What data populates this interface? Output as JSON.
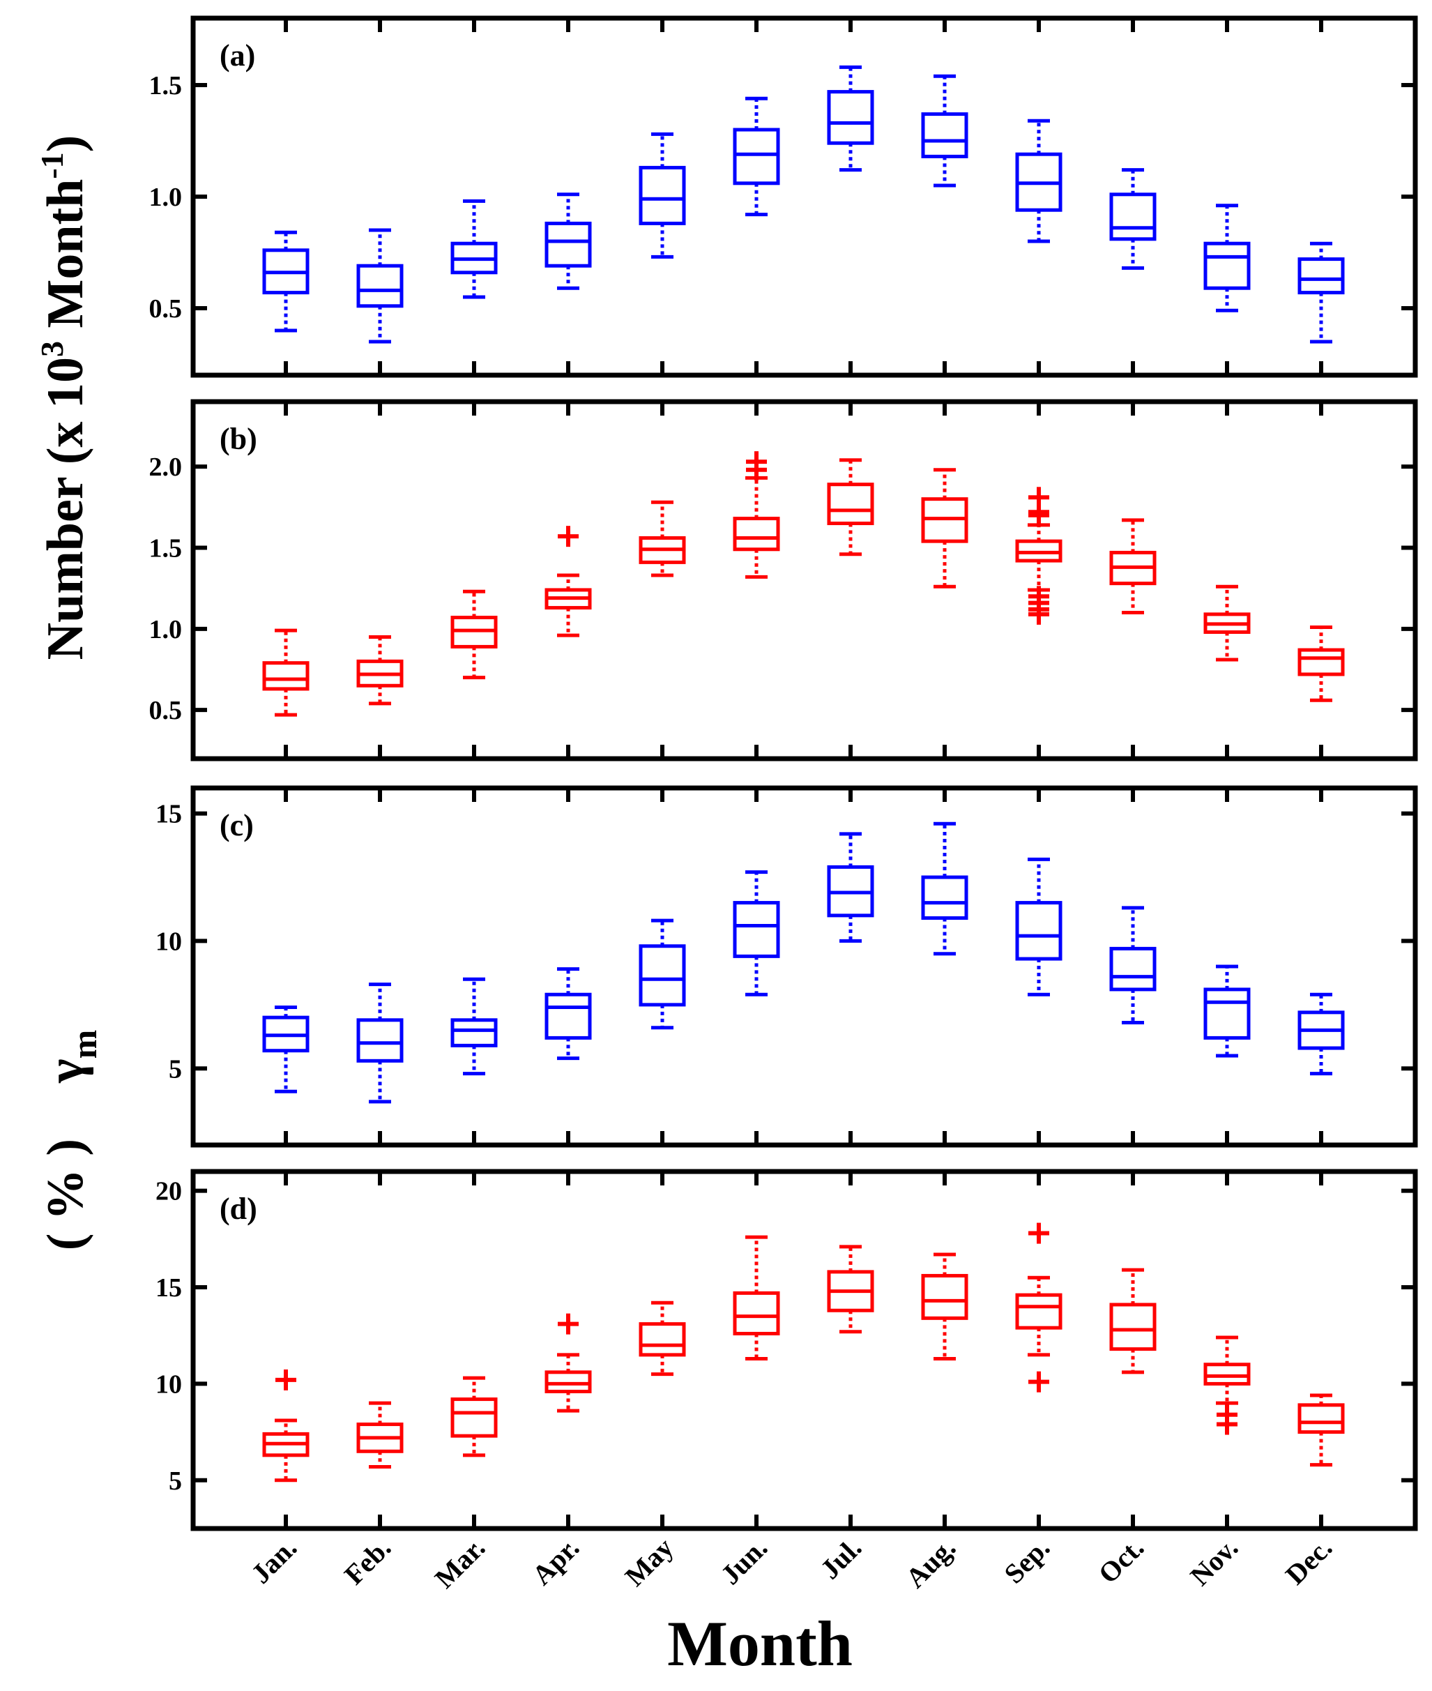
{
  "chart_data": [
    {
      "type": "box",
      "panel_label": "(a)",
      "color": "#0000ff",
      "categories": [
        "Jan.",
        "Feb.",
        "Mar.",
        "Apr.",
        "May",
        "Jun.",
        "Jul.",
        "Aug.",
        "Sep.",
        "Oct.",
        "Nov.",
        "Dec."
      ],
      "ylim": [
        0.2,
        1.8
      ],
      "yticks": [
        0.5,
        1.0,
        1.5
      ],
      "ytick_labels": [
        "0.5",
        "1.0",
        "1.5"
      ],
      "boxes": [
        {
          "wlo": 0.4,
          "q1": 0.57,
          "med": 0.66,
          "q3": 0.76,
          "whi": 0.84,
          "outliers": []
        },
        {
          "wlo": 0.35,
          "q1": 0.51,
          "med": 0.58,
          "q3": 0.69,
          "whi": 0.85,
          "outliers": []
        },
        {
          "wlo": 0.55,
          "q1": 0.66,
          "med": 0.72,
          "q3": 0.79,
          "whi": 0.98,
          "outliers": []
        },
        {
          "wlo": 0.59,
          "q1": 0.69,
          "med": 0.8,
          "q3": 0.88,
          "whi": 1.01,
          "outliers": []
        },
        {
          "wlo": 0.73,
          "q1": 0.88,
          "med": 0.99,
          "q3": 1.13,
          "whi": 1.28,
          "outliers": []
        },
        {
          "wlo": 0.92,
          "q1": 1.06,
          "med": 1.19,
          "q3": 1.3,
          "whi": 1.44,
          "outliers": []
        },
        {
          "wlo": 1.12,
          "q1": 1.24,
          "med": 1.33,
          "q3": 1.47,
          "whi": 1.58,
          "outliers": []
        },
        {
          "wlo": 1.05,
          "q1": 1.18,
          "med": 1.25,
          "q3": 1.37,
          "whi": 1.54,
          "outliers": []
        },
        {
          "wlo": 0.8,
          "q1": 0.94,
          "med": 1.06,
          "q3": 1.19,
          "whi": 1.34,
          "outliers": []
        },
        {
          "wlo": 0.68,
          "q1": 0.81,
          "med": 0.86,
          "q3": 1.01,
          "whi": 1.12,
          "outliers": []
        },
        {
          "wlo": 0.49,
          "q1": 0.59,
          "med": 0.73,
          "q3": 0.79,
          "whi": 0.96,
          "outliers": []
        },
        {
          "wlo": 0.35,
          "q1": 0.57,
          "med": 0.63,
          "q3": 0.72,
          "whi": 0.79,
          "outliers": []
        }
      ]
    },
    {
      "type": "box",
      "panel_label": "(b)",
      "color": "#ff0000",
      "categories": [
        "Jan.",
        "Feb.",
        "Mar.",
        "Apr.",
        "May",
        "Jun.",
        "Jul.",
        "Aug.",
        "Sep.",
        "Oct.",
        "Nov.",
        "Dec."
      ],
      "ylim": [
        0.2,
        2.4
      ],
      "yticks": [
        0.5,
        1.0,
        1.5,
        2.0
      ],
      "ytick_labels": [
        "0.5",
        "1.0",
        "1.5",
        "2.0"
      ],
      "boxes": [
        {
          "wlo": 0.47,
          "q1": 0.63,
          "med": 0.69,
          "q3": 0.79,
          "whi": 0.99,
          "outliers": []
        },
        {
          "wlo": 0.54,
          "q1": 0.65,
          "med": 0.72,
          "q3": 0.8,
          "whi": 0.95,
          "outliers": []
        },
        {
          "wlo": 0.7,
          "q1": 0.89,
          "med": 0.99,
          "q3": 1.07,
          "whi": 1.23,
          "outliers": []
        },
        {
          "wlo": 0.96,
          "q1": 1.13,
          "med": 1.19,
          "q3": 1.24,
          "whi": 1.33,
          "outliers": [
            1.57
          ]
        },
        {
          "wlo": 1.33,
          "q1": 1.41,
          "med": 1.49,
          "q3": 1.56,
          "whi": 1.78,
          "outliers": []
        },
        {
          "wlo": 1.32,
          "q1": 1.49,
          "med": 1.56,
          "q3": 1.68,
          "whi": 1.93,
          "outliers": [
            1.98,
            2.03
          ]
        },
        {
          "wlo": 1.46,
          "q1": 1.65,
          "med": 1.73,
          "q3": 1.89,
          "whi": 2.04,
          "outliers": []
        },
        {
          "wlo": 1.26,
          "q1": 1.54,
          "med": 1.68,
          "q3": 1.8,
          "whi": 1.98,
          "outliers": []
        },
        {
          "wlo": 1.24,
          "q1": 1.42,
          "med": 1.47,
          "q3": 1.54,
          "whi": 1.64,
          "outliers": [
            1.7,
            1.72,
            1.81,
            1.2,
            1.16,
            1.12,
            1.09
          ]
        },
        {
          "wlo": 1.1,
          "q1": 1.28,
          "med": 1.38,
          "q3": 1.47,
          "whi": 1.67,
          "outliers": []
        },
        {
          "wlo": 0.81,
          "q1": 0.98,
          "med": 1.03,
          "q3": 1.09,
          "whi": 1.26,
          "outliers": []
        },
        {
          "wlo": 0.56,
          "q1": 0.72,
          "med": 0.82,
          "q3": 0.87,
          "whi": 1.01,
          "outliers": []
        }
      ]
    },
    {
      "type": "box",
      "panel_label": "(c)",
      "color": "#0000ff",
      "categories": [
        "Jan.",
        "Feb.",
        "Mar.",
        "Apr.",
        "May",
        "Jun.",
        "Jul.",
        "Aug.",
        "Sep.",
        "Oct.",
        "Nov.",
        "Dec."
      ],
      "ylim": [
        2,
        16
      ],
      "yticks": [
        5,
        10,
        15
      ],
      "ytick_labels": [
        "5",
        "10",
        "15"
      ],
      "boxes": [
        {
          "wlo": 4.1,
          "q1": 5.7,
          "med": 6.3,
          "q3": 7.0,
          "whi": 7.4,
          "outliers": []
        },
        {
          "wlo": 3.7,
          "q1": 5.3,
          "med": 6.0,
          "q3": 6.9,
          "whi": 8.3,
          "outliers": []
        },
        {
          "wlo": 4.8,
          "q1": 5.9,
          "med": 6.5,
          "q3": 6.9,
          "whi": 8.5,
          "outliers": []
        },
        {
          "wlo": 5.4,
          "q1": 6.2,
          "med": 7.4,
          "q3": 7.9,
          "whi": 8.9,
          "outliers": []
        },
        {
          "wlo": 6.6,
          "q1": 7.5,
          "med": 8.5,
          "q3": 9.8,
          "whi": 10.8,
          "outliers": []
        },
        {
          "wlo": 7.9,
          "q1": 9.4,
          "med": 10.6,
          "q3": 11.5,
          "whi": 12.7,
          "outliers": []
        },
        {
          "wlo": 10.0,
          "q1": 11.0,
          "med": 11.9,
          "q3": 12.9,
          "whi": 14.2,
          "outliers": []
        },
        {
          "wlo": 9.5,
          "q1": 10.9,
          "med": 11.5,
          "q3": 12.5,
          "whi": 14.6,
          "outliers": []
        },
        {
          "wlo": 7.9,
          "q1": 9.3,
          "med": 10.2,
          "q3": 11.5,
          "whi": 13.2,
          "outliers": []
        },
        {
          "wlo": 6.8,
          "q1": 8.1,
          "med": 8.6,
          "q3": 9.7,
          "whi": 11.3,
          "outliers": []
        },
        {
          "wlo": 5.5,
          "q1": 6.2,
          "med": 7.6,
          "q3": 8.1,
          "whi": 9.0,
          "outliers": []
        },
        {
          "wlo": 4.8,
          "q1": 5.8,
          "med": 6.5,
          "q3": 7.2,
          "whi": 7.9,
          "outliers": []
        }
      ]
    },
    {
      "type": "box",
      "panel_label": "(d)",
      "color": "#ff0000",
      "categories": [
        "Jan.",
        "Feb.",
        "Mar.",
        "Apr.",
        "May",
        "Jun.",
        "Jul.",
        "Aug.",
        "Sep.",
        "Oct.",
        "Nov.",
        "Dec."
      ],
      "ylim": [
        2.5,
        21
      ],
      "yticks": [
        5,
        10,
        15,
        20
      ],
      "ytick_labels": [
        "5",
        "10",
        "15",
        "20"
      ],
      "boxes": [
        {
          "wlo": 5.0,
          "q1": 6.3,
          "med": 6.9,
          "q3": 7.4,
          "whi": 8.1,
          "outliers": [
            10.2
          ]
        },
        {
          "wlo": 5.7,
          "q1": 6.5,
          "med": 7.2,
          "q3": 7.9,
          "whi": 9.0,
          "outliers": []
        },
        {
          "wlo": 6.3,
          "q1": 7.3,
          "med": 8.5,
          "q3": 9.2,
          "whi": 10.3,
          "outliers": []
        },
        {
          "wlo": 8.6,
          "q1": 9.6,
          "med": 10.0,
          "q3": 10.6,
          "whi": 11.5,
          "outliers": [
            13.1
          ]
        },
        {
          "wlo": 10.5,
          "q1": 11.5,
          "med": 12.0,
          "q3": 13.1,
          "whi": 14.2,
          "outliers": []
        },
        {
          "wlo": 11.3,
          "q1": 12.6,
          "med": 13.5,
          "q3": 14.7,
          "whi": 17.6,
          "outliers": []
        },
        {
          "wlo": 12.7,
          "q1": 13.8,
          "med": 14.8,
          "q3": 15.8,
          "whi": 17.1,
          "outliers": []
        },
        {
          "wlo": 11.3,
          "q1": 13.4,
          "med": 14.3,
          "q3": 15.6,
          "whi": 16.7,
          "outliers": []
        },
        {
          "wlo": 11.5,
          "q1": 12.9,
          "med": 14.0,
          "q3": 14.6,
          "whi": 15.5,
          "outliers": [
            17.8,
            10.1
          ]
        },
        {
          "wlo": 10.6,
          "q1": 11.8,
          "med": 12.8,
          "q3": 14.1,
          "whi": 15.9,
          "outliers": []
        },
        {
          "wlo": 9.0,
          "q1": 10.0,
          "med": 10.4,
          "q3": 11.0,
          "whi": 12.4,
          "outliers": [
            8.4,
            7.9
          ]
        },
        {
          "wlo": 5.8,
          "q1": 7.5,
          "med": 8.0,
          "q3": 8.9,
          "whi": 9.4,
          "outliers": []
        }
      ]
    }
  ],
  "axes": {
    "xlabel": "Month",
    "ylabel_top_main": "Number (x 10",
    "ylabel_top_sup": "3",
    "ylabel_top_unit": " Month",
    "ylabel_top_unit_sup": "-1",
    "ylabel_top_close": ")",
    "ylabel_bottom_gamma": "γ",
    "ylabel_bottom_sub": "m",
    "ylabel_bottom_unit": "( % )"
  }
}
